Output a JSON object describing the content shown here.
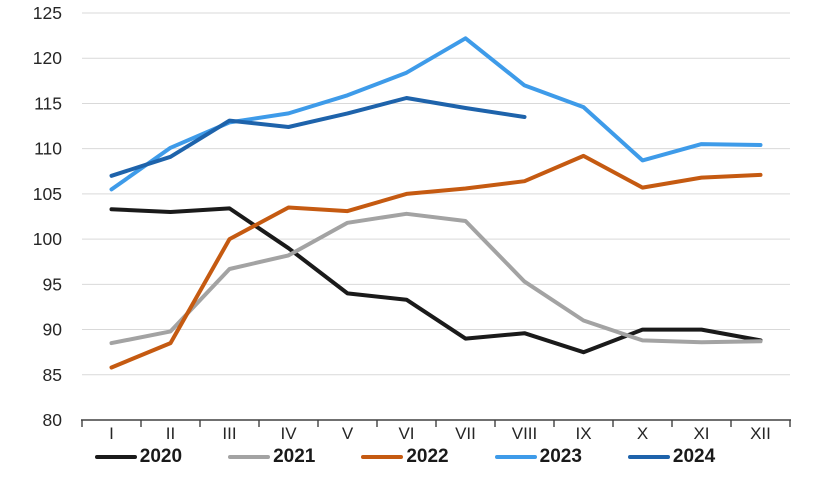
{
  "chart": {
    "background": "#FFFFFF",
    "grid_color": "#D9D9D9",
    "axis_color": "#404040",
    "tick_color": "#404040",
    "label_color": "#262626",
    "legend_text_color": "#1A1A1A"
  },
  "chart_data": {
    "type": "line",
    "title": "",
    "xlabel": "",
    "ylabel": "",
    "categories": [
      "I",
      "II",
      "III",
      "IV",
      "V",
      "VI",
      "VII",
      "VIII",
      "IX",
      "X",
      "XI",
      "XII"
    ],
    "y_ticks": [
      80,
      85,
      90,
      95,
      100,
      105,
      110,
      115,
      120,
      125
    ],
    "ylim": [
      80,
      125
    ],
    "grid": true,
    "legend_position": "bottom",
    "series": [
      {
        "name": "2020",
        "color": "#1A1A1A",
        "values": [
          103.3,
          103.0,
          103.4,
          99.0,
          94.0,
          93.3,
          89.0,
          89.6,
          87.5,
          90.0,
          90.0,
          88.8
        ]
      },
      {
        "name": "2021",
        "color": "#A3A3A3",
        "values": [
          88.5,
          89.8,
          96.7,
          98.2,
          101.8,
          102.8,
          102.0,
          95.3,
          91.0,
          88.8,
          88.6,
          88.7
        ]
      },
      {
        "name": "2022",
        "color": "#C55A11",
        "values": [
          85.8,
          88.5,
          100.0,
          103.5,
          103.1,
          105.0,
          105.6,
          106.4,
          109.2,
          105.7,
          106.8,
          107.1
        ]
      },
      {
        "name": "2023",
        "color": "#3E9BE9",
        "values": [
          105.5,
          110.1,
          112.9,
          113.9,
          115.9,
          118.4,
          122.2,
          117.0,
          114.6,
          108.7,
          110.5,
          110.4
        ]
      },
      {
        "name": "2024",
        "color": "#1E63AB",
        "values": [
          107.0,
          109.1,
          113.1,
          112.4,
          113.9,
          115.6,
          114.5,
          113.5
        ]
      }
    ]
  }
}
